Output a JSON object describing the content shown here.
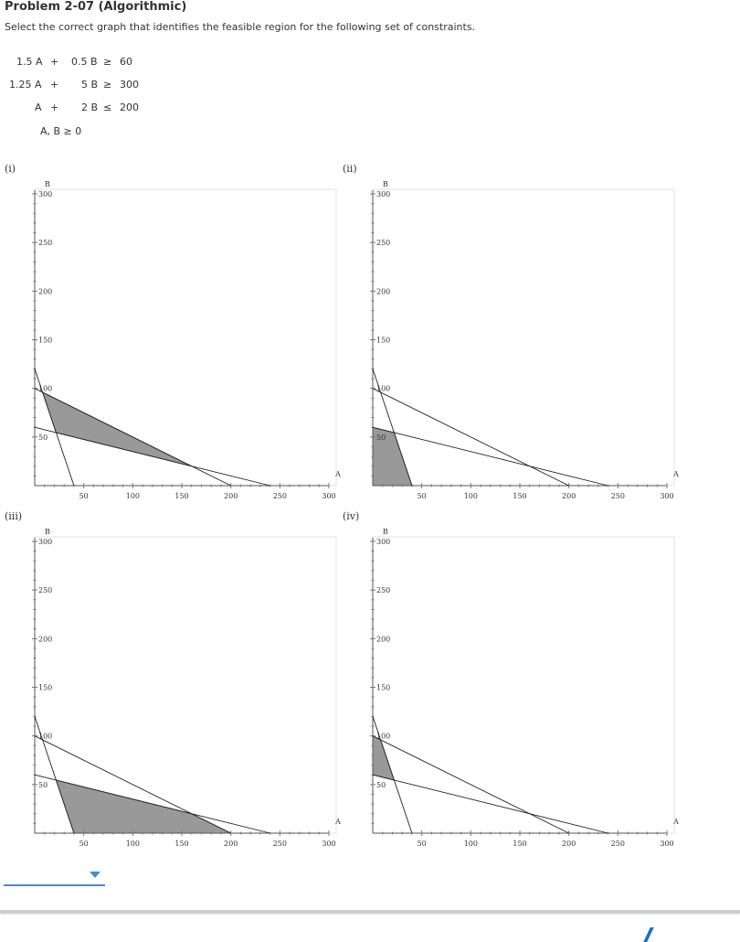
{
  "title": "Problem 2-07 (Algorithmic)",
  "prompt": "Select the correct graph that identifies the feasible region for the following set of constraints.",
  "constraints": [
    {
      "a": "1.5 A",
      "op1": "+",
      "b": "0.5 B",
      "rel": "≥",
      "rhs": "60"
    },
    {
      "a": "1.25 A",
      "op1": "+",
      "b": "5 B",
      "rel": "≥",
      "rhs": "300"
    },
    {
      "a": "A",
      "op1": "+",
      "b": "2 B",
      "rel": "≤",
      "rhs": "200"
    }
  ],
  "nonneg": "A, B ≥ 0",
  "answer_select": {
    "value": "",
    "arrow_icon": "caret-down-icon"
  },
  "footer_icon": "previous-icon",
  "chart_data": [
    {
      "type": "area",
      "label": "(i)",
      "xlabel": "A",
      "ylabel": "B",
      "xlim": [
        0,
        300
      ],
      "ylim": [
        0,
        300
      ],
      "xticks": [
        50,
        100,
        150,
        200,
        250,
        300
      ],
      "yticks": [
        50,
        100,
        150,
        200,
        250,
        300
      ],
      "lines": [
        [
          [
            0,
            120
          ],
          [
            40,
            0
          ]
        ],
        [
          [
            0,
            60
          ],
          [
            240,
            0
          ]
        ],
        [
          [
            0,
            100
          ],
          [
            200,
            0
          ]
        ]
      ],
      "shaded_region": [
        [
          8,
          96
        ],
        [
          21.8,
          54.5
        ],
        [
          160,
          20
        ]
      ],
      "fill": "#999999"
    },
    {
      "type": "area",
      "label": "(ii)",
      "xlabel": "A",
      "ylabel": "B",
      "xlim": [
        0,
        300
      ],
      "ylim": [
        0,
        300
      ],
      "xticks": [
        50,
        100,
        150,
        200,
        250,
        300
      ],
      "yticks": [
        50,
        100,
        150,
        200,
        250,
        300
      ],
      "lines": [
        [
          [
            0,
            120
          ],
          [
            40,
            0
          ]
        ],
        [
          [
            0,
            60
          ],
          [
            240,
            0
          ]
        ],
        [
          [
            0,
            100
          ],
          [
            200,
            0
          ]
        ]
      ],
      "shaded_region": [
        [
          0,
          0
        ],
        [
          0,
          60
        ],
        [
          21.8,
          54.5
        ],
        [
          40,
          0
        ]
      ],
      "fill": "#999999"
    },
    {
      "type": "area",
      "label": "(iii)",
      "xlabel": "A",
      "ylabel": "B",
      "xlim": [
        0,
        300
      ],
      "ylim": [
        0,
        300
      ],
      "xticks": [
        50,
        100,
        150,
        200,
        250,
        300
      ],
      "yticks": [
        50,
        100,
        150,
        200,
        250,
        300
      ],
      "lines": [
        [
          [
            0,
            120
          ],
          [
            40,
            0
          ]
        ],
        [
          [
            0,
            60
          ],
          [
            240,
            0
          ]
        ],
        [
          [
            0,
            100
          ],
          [
            200,
            0
          ]
        ]
      ],
      "shaded_region": [
        [
          21.8,
          54.5
        ],
        [
          40,
          0
        ],
        [
          200,
          0
        ],
        [
          160,
          20
        ]
      ],
      "fill": "#999999"
    },
    {
      "type": "area",
      "label": "(iv)",
      "xlabel": "A",
      "ylabel": "B",
      "xlim": [
        0,
        300
      ],
      "ylim": [
        0,
        300
      ],
      "xticks": [
        50,
        100,
        150,
        200,
        250,
        300
      ],
      "yticks": [
        50,
        100,
        150,
        200,
        250,
        300
      ],
      "lines": [
        [
          [
            0,
            120
          ],
          [
            40,
            0
          ]
        ],
        [
          [
            0,
            60
          ],
          [
            240,
            0
          ]
        ],
        [
          [
            0,
            100
          ],
          [
            200,
            0
          ]
        ]
      ],
      "shaded_region": [
        [
          0,
          100
        ],
        [
          8,
          96
        ],
        [
          21.8,
          54.5
        ],
        [
          0,
          60
        ]
      ],
      "fill": "#999999"
    }
  ]
}
